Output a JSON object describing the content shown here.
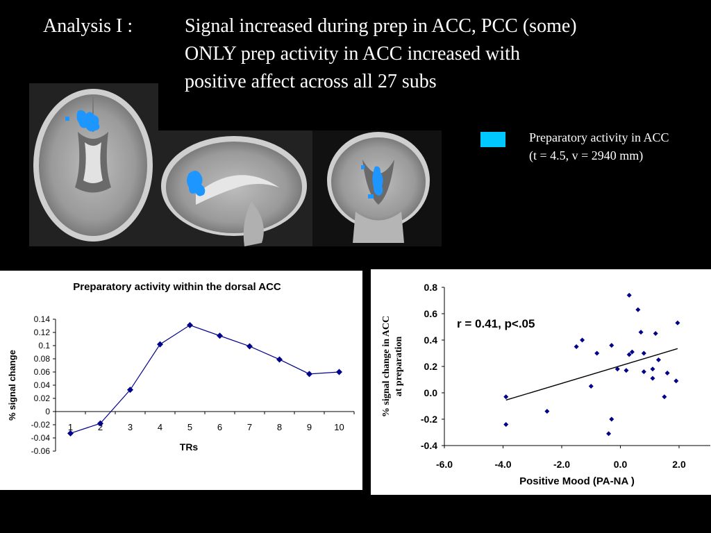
{
  "slide": {
    "label": "Analysis I :",
    "lines": [
      "Signal increased during prep in ACC, PCC (some)",
      "ONLY prep activity in ACC increased with",
      "positive affect across all 27 subs"
    ],
    "legend": {
      "color": "#00c8ff",
      "line1": "Preparatory activity in ACC",
      "line2": "(t = 4.5, v = 2940 mm)"
    },
    "brain_overlay_color": "#1e96ff"
  },
  "chart_data": [
    {
      "type": "line",
      "title": "Preparatory activity within the dorsal ACC",
      "xlabel": "TRs",
      "ylabel": "% signal change",
      "categories": [
        "1",
        "2",
        "3",
        "4",
        "5",
        "6",
        "7",
        "8",
        "9",
        "10"
      ],
      "values": [
        -0.033,
        -0.018,
        0.033,
        0.102,
        0.131,
        0.115,
        0.099,
        0.079,
        0.057,
        0.06
      ],
      "ylim": [
        -0.06,
        0.14
      ],
      "yticks": [
        "0.14",
        "0.12",
        "0.1",
        "0.08",
        "0.06",
        "0.04",
        "0.02",
        "0",
        "-0.02",
        "-0.04",
        "-0.06"
      ],
      "ytick_values": [
        0.14,
        0.12,
        0.1,
        0.08,
        0.06,
        0.04,
        0.02,
        0,
        -0.02,
        -0.04,
        -0.06
      ],
      "color": "#00008b",
      "grid": false
    },
    {
      "type": "scatter",
      "xlabel": "Positive Mood (PA-NA )",
      "ylabel_line1": "% signal change in ACC",
      "ylabel_line2": "at preparation",
      "annotation": "r = 0.41, p<.05",
      "xlim": [
        -6.0,
        2.0
      ],
      "ylim": [
        -0.4,
        0.8
      ],
      "xticks": [
        "-6.0",
        "-4.0",
        "-2.0",
        "0.0",
        "2.0"
      ],
      "xtick_values": [
        -6.0,
        -4.0,
        -2.0,
        0.0,
        2.0
      ],
      "yticks": [
        "0.8",
        "0.6",
        "0.4",
        "0.2",
        "0.0",
        "-0.2",
        "-0.4"
      ],
      "ytick_values": [
        0.8,
        0.6,
        0.4,
        0.2,
        0.0,
        -0.2,
        -0.4
      ],
      "points": [
        [
          -3.9,
          -0.03
        ],
        [
          -3.9,
          -0.24
        ],
        [
          -2.5,
          -0.14
        ],
        [
          -1.5,
          0.35
        ],
        [
          -1.3,
          0.4
        ],
        [
          -1.0,
          0.05
        ],
        [
          -0.8,
          0.3
        ],
        [
          -0.4,
          -0.31
        ],
        [
          -0.3,
          -0.2
        ],
        [
          -0.3,
          0.36
        ],
        [
          -0.1,
          0.18
        ],
        [
          0.2,
          0.17
        ],
        [
          0.3,
          0.74
        ],
        [
          0.3,
          0.29
        ],
        [
          0.4,
          0.31
        ],
        [
          0.6,
          0.63
        ],
        [
          0.7,
          0.46
        ],
        [
          0.8,
          0.3
        ],
        [
          0.8,
          0.16
        ],
        [
          1.1,
          0.18
        ],
        [
          1.1,
          0.11
        ],
        [
          1.2,
          0.45
        ],
        [
          1.3,
          0.25
        ],
        [
          1.5,
          -0.03
        ],
        [
          1.6,
          0.15
        ],
        [
          1.9,
          0.09
        ],
        [
          1.95,
          0.53
        ]
      ],
      "trendline": [
        [
          -3.9,
          -0.055
        ],
        [
          1.95,
          0.335
        ]
      ],
      "point_color": "#00008b",
      "line_color": "#000000",
      "grid": false
    }
  ]
}
